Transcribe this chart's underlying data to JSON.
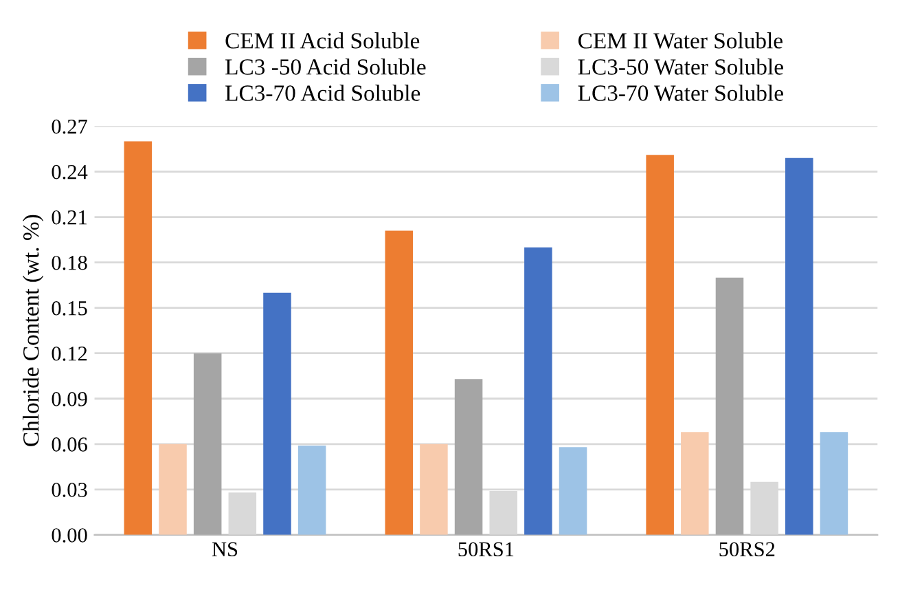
{
  "chart_data": {
    "type": "bar",
    "ylabel": "Chloride Content (wt. %)",
    "categories": [
      "NS",
      "50RS1",
      "50RS2"
    ],
    "series": [
      {
        "name": "CEM II Acid Soluble",
        "color": "#ed7d31",
        "values": [
          0.26,
          0.201,
          0.251
        ]
      },
      {
        "name": "CEM II Water Soluble",
        "color": "#f8cbad",
        "values": [
          0.06,
          0.06,
          0.068
        ]
      },
      {
        "name": "LC3 -50 Acid Soluble",
        "color": "#a5a5a5",
        "values": [
          0.12,
          0.103,
          0.17
        ]
      },
      {
        "name": "LC3-50 Water Soluble",
        "color": "#d9d9d9",
        "values": [
          0.028,
          0.029,
          0.035
        ]
      },
      {
        "name": "LC3-70 Acid Soluble",
        "color": "#4472c4",
        "values": [
          0.16,
          0.19,
          0.249
        ]
      },
      {
        "name": "LC3-70 Water Soluble",
        "color": "#9dc3e6",
        "values": [
          0.059,
          0.058,
          0.068
        ]
      }
    ],
    "ylim": [
      0,
      0.27
    ],
    "yticks": [
      {
        "value": 0,
        "label": "0.00"
      },
      {
        "value": 0.03,
        "label": "0.03"
      },
      {
        "value": 0.06,
        "label": "0.06"
      },
      {
        "value": 0.09,
        "label": "0.09"
      },
      {
        "value": 0.12,
        "label": "0.12"
      },
      {
        "value": 0.15,
        "label": "0.15"
      },
      {
        "value": 0.18,
        "label": "0.18"
      },
      {
        "value": 0.21,
        "label": "0.21"
      },
      {
        "value": 0.24,
        "label": "0.24"
      },
      {
        "value": 0.27,
        "label": "0.27"
      }
    ],
    "grid": "y",
    "legend": "top"
  }
}
